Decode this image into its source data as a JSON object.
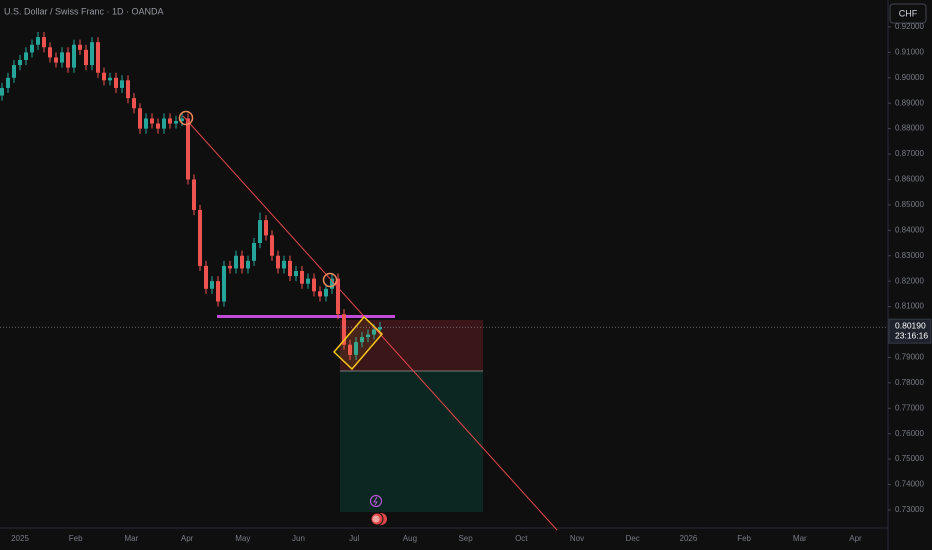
{
  "chart_data": {
    "type": "candlestick",
    "title": "U.S. Dollar / Swiss Franc · 1D · OANDA",
    "currency": "CHF",
    "up_color": "#26a69a",
    "down_color": "#ef5350",
    "ylim": [
      0.7229,
      0.9306
    ],
    "yticks": [
      {
        "value": 0.92,
        "label": "0.92000"
      },
      {
        "value": 0.91,
        "label": "0.91000"
      },
      {
        "value": 0.9,
        "label": "0.90000"
      },
      {
        "value": 0.89,
        "label": "0.89000"
      },
      {
        "value": 0.88,
        "label": "0.88000"
      },
      {
        "value": 0.87,
        "label": "0.87000"
      },
      {
        "value": 0.86,
        "label": "0.86000"
      },
      {
        "value": 0.85,
        "label": "0.85000"
      },
      {
        "value": 0.84,
        "label": "0.84000"
      },
      {
        "value": 0.83,
        "label": "0.83000"
      },
      {
        "value": 0.82,
        "label": "0.82000"
      },
      {
        "value": 0.81,
        "label": "0.81000"
      },
      {
        "value": 0.79,
        "label": "0.79000"
      },
      {
        "value": 0.78,
        "label": "0.78000"
      },
      {
        "value": 0.77,
        "label": "0.77000"
      },
      {
        "value": 0.76,
        "label": "0.76000"
      },
      {
        "value": 0.75,
        "label": "0.75000"
      },
      {
        "value": 0.74,
        "label": "0.74000"
      },
      {
        "value": 0.73,
        "label": "0.73000"
      }
    ],
    "x_labels": [
      "2025",
      "Feb",
      "Mar",
      "Apr",
      "May",
      "Jun",
      "Jul",
      "Aug",
      "Sep",
      "Oct",
      "Nov",
      "Dec",
      "2026",
      "Feb",
      "Mar",
      "Apr"
    ],
    "last_price": {
      "value": 0.8019,
      "label": "0.80190"
    },
    "countdown": "23:16:16",
    "open": [
      0.893,
      0.896,
      0.9,
      0.905,
      0.907,
      0.91,
      0.913,
      0.916,
      0.912,
      0.908,
      0.906,
      0.91,
      0.904,
      0.913,
      0.911,
      0.905,
      0.914,
      0.902,
      0.899,
      0.9,
      0.896,
      0.899,
      0.892,
      0.888,
      0.88,
      0.884,
      0.882,
      0.88,
      0.884,
      0.882,
      0.883,
      0.884,
      0.86,
      0.848,
      0.826,
      0.817,
      0.82,
      0.812,
      0.826,
      0.825,
      0.83,
      0.825,
      0.828,
      0.835,
      0.844,
      0.838,
      0.83,
      0.825,
      0.828,
      0.822,
      0.824,
      0.819,
      0.821,
      0.816,
      0.814,
      0.817,
      0.821,
      0.807,
      0.795,
      0.791,
      0.796,
      0.798,
      0.799,
      0.801
    ],
    "high": [
      0.898,
      0.902,
      0.907,
      0.909,
      0.912,
      0.915,
      0.918,
      0.918,
      0.914,
      0.91,
      0.912,
      0.912,
      0.915,
      0.915,
      0.913,
      0.916,
      0.916,
      0.904,
      0.902,
      0.902,
      0.901,
      0.901,
      0.894,
      0.89,
      0.886,
      0.886,
      0.884,
      0.886,
      0.886,
      0.885,
      0.886,
      0.886,
      0.862,
      0.85,
      0.828,
      0.822,
      0.822,
      0.828,
      0.828,
      0.832,
      0.832,
      0.83,
      0.837,
      0.847,
      0.846,
      0.84,
      0.832,
      0.83,
      0.83,
      0.826,
      0.826,
      0.823,
      0.823,
      0.818,
      0.819,
      0.823,
      0.823,
      0.809,
      0.797,
      0.798,
      0.8,
      0.801,
      0.803,
      0.804
    ],
    "low": [
      0.891,
      0.894,
      0.898,
      0.903,
      0.905,
      0.908,
      0.911,
      0.91,
      0.906,
      0.904,
      0.904,
      0.902,
      0.902,
      0.909,
      0.903,
      0.903,
      0.9,
      0.897,
      0.897,
      0.894,
      0.894,
      0.89,
      0.886,
      0.878,
      0.878,
      0.88,
      0.878,
      0.878,
      0.88,
      0.88,
      0.881,
      0.858,
      0.846,
      0.824,
      0.815,
      0.815,
      0.81,
      0.81,
      0.823,
      0.823,
      0.823,
      0.823,
      0.826,
      0.833,
      0.836,
      0.828,
      0.823,
      0.823,
      0.82,
      0.82,
      0.817,
      0.817,
      0.814,
      0.812,
      0.812,
      0.815,
      0.805,
      0.793,
      0.789,
      0.789,
      0.794,
      0.796,
      0.797,
      0.799
    ],
    "close": [
      0.896,
      0.9,
      0.905,
      0.907,
      0.91,
      0.913,
      0.916,
      0.912,
      0.908,
      0.906,
      0.91,
      0.904,
      0.913,
      0.911,
      0.905,
      0.914,
      0.902,
      0.899,
      0.9,
      0.896,
      0.899,
      0.892,
      0.888,
      0.88,
      0.884,
      0.882,
      0.88,
      0.884,
      0.882,
      0.883,
      0.884,
      0.86,
      0.848,
      0.826,
      0.817,
      0.82,
      0.812,
      0.826,
      0.825,
      0.83,
      0.825,
      0.828,
      0.835,
      0.844,
      0.838,
      0.83,
      0.825,
      0.828,
      0.822,
      0.824,
      0.819,
      0.821,
      0.816,
      0.814,
      0.817,
      0.821,
      0.807,
      0.795,
      0.791,
      0.796,
      0.798,
      0.799,
      0.801,
      0.8019
    ]
  }
}
